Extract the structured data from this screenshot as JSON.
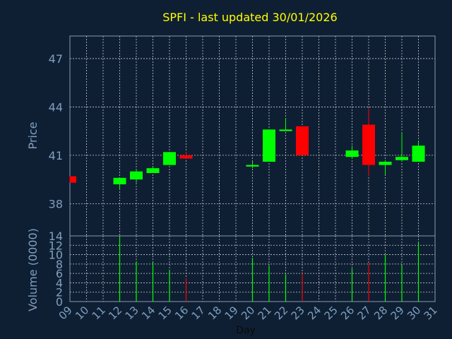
{
  "chart_data": {
    "type": "candlestick",
    "title": "SPFI - last updated 30/01/2026",
    "xlabel": "Day",
    "x_tick_labels": [
      "09",
      "10",
      "11",
      "12",
      "13",
      "14",
      "15",
      "16",
      "17",
      "18",
      "19",
      "20",
      "21",
      "22",
      "23",
      "24",
      "25",
      "26",
      "27",
      "28",
      "29",
      "30",
      "31"
    ],
    "price_panel": {
      "ylabel": "Price",
      "ylim": [
        36.0,
        48.4
      ],
      "yticks": [
        38,
        41,
        44,
        47
      ],
      "candles": [
        {
          "day": "09",
          "open": 39.7,
          "high": 39.7,
          "low": 39.3,
          "close": 39.3
        },
        {
          "day": "12",
          "open": 39.2,
          "high": 39.6,
          "low": 38.9,
          "close": 39.6
        },
        {
          "day": "13",
          "open": 39.5,
          "high": 40.1,
          "low": 39.3,
          "close": 40.0
        },
        {
          "day": "14",
          "open": 39.9,
          "high": 40.3,
          "low": 39.9,
          "close": 40.2
        },
        {
          "day": "15",
          "open": 40.4,
          "high": 41.2,
          "low": 40.4,
          "close": 41.2
        },
        {
          "day": "16",
          "open": 41.0,
          "high": 41.2,
          "low": 40.8,
          "close": 40.8
        },
        {
          "day": "20",
          "open": 40.3,
          "high": 40.6,
          "low": 40.2,
          "close": 40.4
        },
        {
          "day": "21",
          "open": 40.6,
          "high": 42.6,
          "low": 40.6,
          "close": 42.6
        },
        {
          "day": "22",
          "open": 42.5,
          "high": 43.3,
          "low": 42.5,
          "close": 42.6
        },
        {
          "day": "23",
          "open": 42.8,
          "high": 42.8,
          "low": 41.0,
          "close": 41.0
        },
        {
          "day": "26",
          "open": 40.9,
          "high": 41.6,
          "low": 40.8,
          "close": 41.3
        },
        {
          "day": "27",
          "open": 42.9,
          "high": 43.9,
          "low": 39.7,
          "close": 40.4
        },
        {
          "day": "28",
          "open": 40.4,
          "high": 40.7,
          "low": 39.8,
          "close": 40.6
        },
        {
          "day": "29",
          "open": 40.7,
          "high": 42.4,
          "low": 40.6,
          "close": 40.9
        },
        {
          "day": "30",
          "open": 40.6,
          "high": 41.9,
          "low": 40.6,
          "close": 41.6
        }
      ]
    },
    "volume_panel": {
      "ylabel": "Volume (0000)",
      "ylim": [
        0,
        14
      ],
      "yticks": [
        0,
        2,
        4,
        6,
        8,
        10,
        12,
        14
      ],
      "bars": [
        {
          "day": "12",
          "value": 13.8,
          "direction": "up"
        },
        {
          "day": "13",
          "value": 8.6,
          "direction": "up"
        },
        {
          "day": "14",
          "value": 8.4,
          "direction": "up"
        },
        {
          "day": "15",
          "value": 6.8,
          "direction": "up"
        },
        {
          "day": "16",
          "value": 5.0,
          "direction": "down"
        },
        {
          "day": "20",
          "value": 9.3,
          "direction": "up"
        },
        {
          "day": "21",
          "value": 7.6,
          "direction": "up"
        },
        {
          "day": "22",
          "value": 5.8,
          "direction": "up"
        },
        {
          "day": "23",
          "value": 6.0,
          "direction": "down"
        },
        {
          "day": "26",
          "value": 7.0,
          "direction": "up"
        },
        {
          "day": "27",
          "value": 8.2,
          "direction": "down"
        },
        {
          "day": "28",
          "value": 10.0,
          "direction": "up"
        },
        {
          "day": "29",
          "value": 7.8,
          "direction": "up"
        },
        {
          "day": "30",
          "value": 12.5,
          "direction": "up"
        }
      ]
    },
    "grid": true,
    "colors": {
      "background": "#0f1f33",
      "up": "#00ff00",
      "down": "#ff0000",
      "title": "#ffff00",
      "axis_text": "#7f9fbf",
      "frame": "#8899aa",
      "grid": "#c8c8c8"
    }
  }
}
